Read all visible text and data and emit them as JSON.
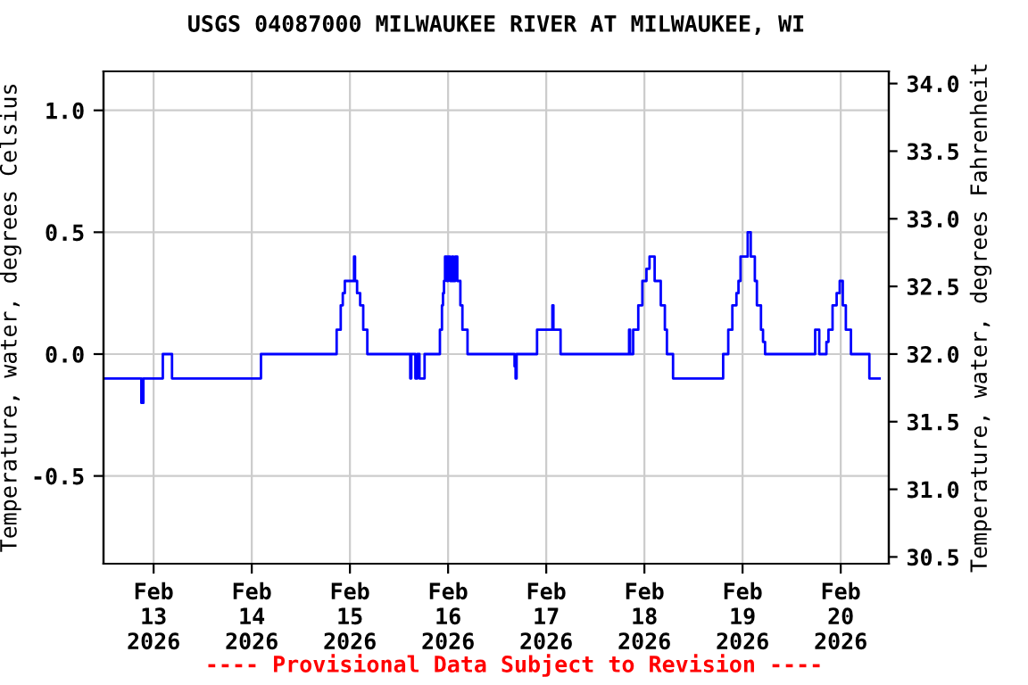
{
  "chart_data": {
    "type": "step",
    "title": "USGS 04087000 MILWAUKEE RIVER AT MILWAUKEE, WI",
    "ylabel": "Temperature, water, degrees Celsius",
    "y2label": "Temperature, water, degrees Fahrenheit",
    "annotations": [
      "---- Provisional Data Subject to Revision ----"
    ],
    "series": [
      {
        "color": "#0000ff",
        "x": [
          "2026-02-12T11:45",
          "2026-02-12T21:00",
          "2026-02-12T21:30",
          "2026-02-13T02:15",
          "2026-02-13T04:30",
          "2026-02-14T02:15",
          "2026-02-14T20:45",
          "2026-02-14T21:45",
          "2026-02-14T22:15",
          "2026-02-14T22:45",
          "2026-02-15T01:00",
          "2026-02-15T01:15",
          "2026-02-15T01:45",
          "2026-02-15T02:30",
          "2026-02-15T03:15",
          "2026-02-15T04:15",
          "2026-02-15T14:45",
          "2026-02-15T15:00",
          "2026-02-15T16:00",
          "2026-02-15T16:30",
          "2026-02-15T17:00",
          "2026-02-15T18:15",
          "2026-02-15T22:00",
          "2026-02-15T22:30",
          "2026-02-15T22:45",
          "2026-02-15T23:00",
          "2026-02-15T23:15",
          "2026-02-15T23:45",
          "2026-02-16T00:00",
          "2026-02-16T00:30",
          "2026-02-16T01:00",
          "2026-02-16T01:15",
          "2026-02-16T01:45",
          "2026-02-16T02:15",
          "2026-02-16T03:00",
          "2026-02-16T03:30",
          "2026-02-16T04:45",
          "2026-02-16T16:15",
          "2026-02-16T16:30",
          "2026-02-16T16:45",
          "2026-02-16T21:45",
          "2026-02-17T01:30",
          "2026-02-17T01:45",
          "2026-02-17T03:30",
          "2026-02-17T20:15",
          "2026-02-17T20:30",
          "2026-02-17T21:15",
          "2026-02-17T22:30",
          "2026-02-17T23:30",
          "2026-02-18T00:30",
          "2026-02-18T01:15",
          "2026-02-18T02:30",
          "2026-02-18T04:00",
          "2026-02-18T05:00",
          "2026-02-18T05:30",
          "2026-02-18T07:00",
          "2026-02-18T19:15",
          "2026-02-18T20:30",
          "2026-02-18T21:30",
          "2026-02-18T22:30",
          "2026-02-18T23:00",
          "2026-02-18T23:30",
          "2026-02-19T01:15",
          "2026-02-19T02:00",
          "2026-02-19T03:00",
          "2026-02-19T03:30",
          "2026-02-19T04:30",
          "2026-02-19T05:00",
          "2026-02-19T05:30",
          "2026-02-19T17:45",
          "2026-02-19T18:45",
          "2026-02-19T20:30",
          "2026-02-19T21:00",
          "2026-02-19T22:00",
          "2026-02-19T23:00",
          "2026-02-19T23:45",
          "2026-02-20T00:30",
          "2026-02-20T01:15",
          "2026-02-20T02:30",
          "2026-02-20T07:00",
          "2026-02-20T09:30"
        ],
        "values": [
          -0.1,
          -0.2,
          -0.1,
          0.0,
          -0.1,
          0.0,
          0.1,
          0.2,
          0.25,
          0.3,
          0.4,
          0.3,
          0.25,
          0.2,
          0.1,
          0.0,
          -0.1,
          0.0,
          -0.1,
          0.0,
          -0.1,
          0.0,
          0.1,
          0.2,
          0.25,
          0.3,
          0.4,
          0.3,
          0.4,
          0.3,
          0.4,
          0.3,
          0.4,
          0.3,
          0.2,
          0.1,
          0.0,
          -0.05,
          -0.1,
          0.0,
          0.1,
          0.2,
          0.1,
          0.0,
          0.1,
          0.0,
          0.1,
          0.2,
          0.3,
          0.35,
          0.4,
          0.3,
          0.2,
          0.1,
          0.0,
          -0.1,
          0.0,
          0.1,
          0.2,
          0.25,
          0.3,
          0.4,
          0.5,
          0.4,
          0.3,
          0.2,
          0.1,
          0.05,
          0.0,
          0.1,
          0.0,
          0.05,
          0.1,
          0.2,
          0.25,
          0.3,
          0.2,
          0.1,
          0.0,
          -0.1,
          -0.1
        ]
      }
    ],
    "xlim": [
      "2026-02-12T11:45",
      "2026-02-20T11:45"
    ],
    "xticks": [
      {
        "value": "2026-02-13",
        "label": "Feb\n13\n2026"
      },
      {
        "value": "2026-02-14",
        "label": "Feb\n14\n2026"
      },
      {
        "value": "2026-02-15",
        "label": "Feb\n15\n2026"
      },
      {
        "value": "2026-02-16",
        "label": "Feb\n16\n2026"
      },
      {
        "value": "2026-02-17",
        "label": "Feb\n17\n2026"
      },
      {
        "value": "2026-02-18",
        "label": "Feb\n18\n2026"
      },
      {
        "value": "2026-02-19",
        "label": "Feb\n19\n2026"
      },
      {
        "value": "2026-02-20",
        "label": "Feb\n20\n2026"
      }
    ],
    "ylim": [
      -0.86,
      1.16
    ],
    "yticks": [
      {
        "value": -0.5,
        "label": "-0.5"
      },
      {
        "value": 0,
        "label": "0.0"
      },
      {
        "value": 0.5,
        "label": "0.5"
      },
      {
        "value": 1,
        "label": "1.0"
      }
    ],
    "y2lim": [
      30.45,
      34.09
    ],
    "y2ticks": [
      {
        "value": 30.5,
        "label": "30.5"
      },
      {
        "value": 31,
        "label": "31.0"
      },
      {
        "value": 31.5,
        "label": "31.5"
      },
      {
        "value": 32,
        "label": "32.0"
      },
      {
        "value": 32.5,
        "label": "32.5"
      },
      {
        "value": 33,
        "label": "33.0"
      },
      {
        "value": 33.5,
        "label": "33.5"
      },
      {
        "value": 34,
        "label": "34.0"
      }
    ],
    "grid": true
  }
}
